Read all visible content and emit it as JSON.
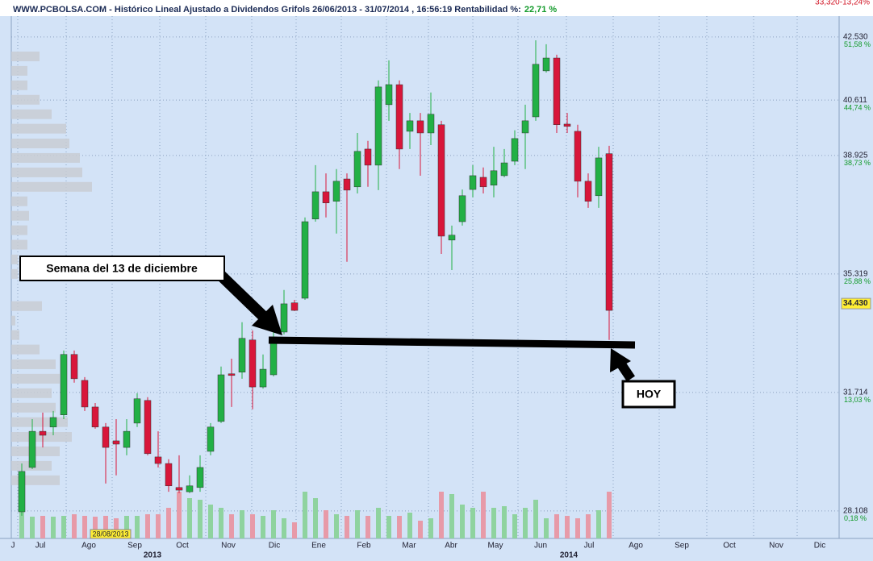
{
  "chart_data": {
    "type": "candlestick",
    "title": "WWW.PCBOLSA.COM - Histórico Lineal  Ajustado a Dividendos Grifols 26/06/2013 - 31/07/2014 , 16:56:19 Rentabilidad %:",
    "return_label": "22,71 %",
    "corner_text": "33,320-13,24%",
    "categories": [
      null,
      null,
      null,
      null,
      null,
      null,
      null,
      null,
      null,
      null,
      null,
      null,
      null,
      null,
      null,
      null,
      null,
      null,
      null,
      null,
      null,
      null,
      null,
      null,
      null,
      null,
      null,
      null,
      null,
      null,
      null,
      null,
      null,
      null,
      null,
      null,
      null,
      null,
      null,
      null,
      null,
      null,
      null,
      null,
      null,
      null,
      null,
      null,
      null,
      null,
      null,
      null,
      null,
      null,
      null,
      null,
      null
    ],
    "open": [
      28.08,
      29.43,
      30.53,
      30.66,
      31.03,
      32.87,
      32.08,
      31.27,
      30.66,
      30.24,
      30.04,
      30.78,
      31.47,
      29.75,
      29.55,
      28.82,
      28.69,
      28.82,
      29.92,
      30.83,
      32.28,
      32.33,
      33.31,
      31.88,
      32.25,
      33.55,
      34.44,
      34.58,
      36.99,
      37.82,
      37.53,
      38.21,
      37.97,
      39.12,
      38.63,
      40.47,
      41.08,
      39.66,
      39.98,
      39.61,
      39.86,
      36.35,
      36.91,
      37.89,
      38.26,
      38.02,
      38.31,
      38.75,
      39.61,
      40.1,
      41.5,
      41.89,
      39.88,
      39.66,
      38.14,
      37.7,
      38.98
    ],
    "high": [
      29.55,
      30.9,
      31.1,
      31.15,
      32.99,
      32.99,
      32.18,
      31.39,
      30.78,
      30.9,
      30.9,
      31.69,
      31.57,
      30.53,
      29.68,
      29.8,
      29.19,
      29.8,
      30.78,
      32.5,
      32.74,
      33.85,
      33.6,
      32.87,
      33.6,
      34.83,
      34.53,
      37.04,
      38.63,
      38.38,
      38.51,
      38.38,
      39.61,
      39.37,
      41.21,
      41.82,
      41.21,
      40.22,
      40.22,
      40.84,
      39.98,
      36.79,
      37.89,
      38.63,
      38.56,
      39.19,
      39.12,
      39.69,
      40.47,
      42.43,
      42.31,
      41.99,
      40.22,
      39.86,
      38.38,
      39.19,
      39.22
    ],
    "low": [
      27.96,
      29.38,
      30.04,
      30.41,
      30.9,
      32.01,
      31.15,
      30.61,
      28.94,
      29.19,
      29.8,
      30.66,
      29.8,
      29.43,
      28.69,
      28.65,
      28.65,
      28.69,
      29.8,
      30.78,
      31.27,
      32.13,
      31.2,
      31.83,
      32.2,
      33.48,
      34.19,
      34.53,
      36.91,
      37.04,
      36.55,
      35.69,
      37.77,
      37.97,
      37.87,
      39.98,
      38.51,
      39.12,
      38.31,
      39.24,
      35.93,
      35.44,
      36.79,
      37.65,
      37.77,
      37.65,
      38.26,
      38.63,
      38.51,
      39.98,
      41.45,
      39.61,
      39.61,
      37.65,
      37.33,
      37.33,
      33.31
    ],
    "close": [
      29.31,
      30.53,
      30.41,
      30.95,
      32.87,
      32.13,
      31.27,
      30.66,
      30.04,
      30.14,
      30.53,
      31.52,
      29.85,
      29.55,
      28.87,
      28.74,
      28.87,
      29.43,
      30.66,
      32.25,
      32.23,
      33.36,
      31.88,
      32.42,
      33.4,
      34.41,
      34.21,
      36.91,
      37.82,
      37.48,
      38.14,
      37.87,
      39.05,
      38.63,
      41.01,
      41.08,
      39.12,
      39.98,
      39.61,
      40.18,
      36.47,
      36.5,
      37.7,
      38.31,
      37.97,
      38.46,
      38.7,
      39.44,
      39.98,
      41.7,
      41.89,
      39.86,
      39.81,
      38.14,
      37.53,
      38.85,
      34.21
    ],
    "volume": [
      38,
      27,
      28,
      27,
      28,
      30,
      28,
      27,
      28,
      25,
      28,
      28,
      30,
      30,
      38,
      58,
      50,
      48,
      42,
      38,
      30,
      35,
      30,
      28,
      35,
      25,
      20,
      58,
      50,
      35,
      30,
      28,
      35,
      28,
      38,
      28,
      28,
      32,
      22,
      25,
      58,
      55,
      42,
      38,
      58,
      38,
      40,
      30,
      38,
      48,
      25,
      30,
      28,
      25,
      30,
      35,
      58
    ],
    "up_color": "#22b045",
    "down_color": "#d8163a",
    "volume_profile": {
      "prices": [
        41.94,
        41.5,
        41.06,
        40.62,
        40.18,
        39.74,
        39.29,
        38.85,
        38.41,
        37.97,
        37.53,
        37.09,
        36.65,
        36.21,
        35.76,
        35.32,
        34.34,
        33.9,
        33.46,
        33.02,
        32.57,
        32.13,
        31.69,
        31.25,
        30.81,
        30.36,
        29.92,
        29.48,
        29.04
      ],
      "values": [
        35,
        20,
        20,
        35,
        50,
        68,
        72,
        85,
        88,
        100,
        20,
        22,
        20,
        20,
        8,
        8,
        38,
        5,
        10,
        35,
        55,
        60,
        50,
        55,
        70,
        75,
        60,
        50,
        60
      ]
    },
    "ylim": [
      27.27,
      43.46
    ],
    "yticks": [
      {
        "value": 42.53,
        "label": "42.530"
      },
      {
        "value": 40.611,
        "label": "40.611"
      },
      {
        "value": 38.925,
        "label": "38.925"
      },
      {
        "value": 35.319,
        "label": "35.319"
      },
      {
        "value": 31.714,
        "label": "31.714"
      },
      {
        "value": 28.108,
        "label": "28.108"
      }
    ],
    "y2lim": [
      -2.81,
      54.89
    ],
    "y2ticks": [
      {
        "value": 51.58,
        "label": "51,58 %"
      },
      {
        "value": 44.74,
        "label": "44,74 %"
      },
      {
        "value": 38.73,
        "label": "38,73 %"
      },
      {
        "value": 25.88,
        "label": "25,88 %"
      },
      {
        "value": 13.03,
        "label": "13,03 %"
      },
      {
        "value": 0.18,
        "label": "0,18 %"
      }
    ],
    "last_price": {
      "value": 34.43,
      "label": "34.430"
    },
    "month_labels": [
      "J",
      "Jul",
      "Ago",
      "Sep",
      "Oct",
      "Nov",
      "Dic",
      "Ene",
      "Feb",
      "Mar",
      "Abr",
      "May",
      "Jun",
      "Jul",
      "Ago",
      "Sep",
      "Oct",
      "Nov",
      "Dic"
    ],
    "year_labels": [
      "2013",
      "2014"
    ],
    "date_stamp": "28/08/2013",
    "annotations": [
      "Semana del 13 de diciembre",
      "HOY"
    ],
    "grid": true
  }
}
